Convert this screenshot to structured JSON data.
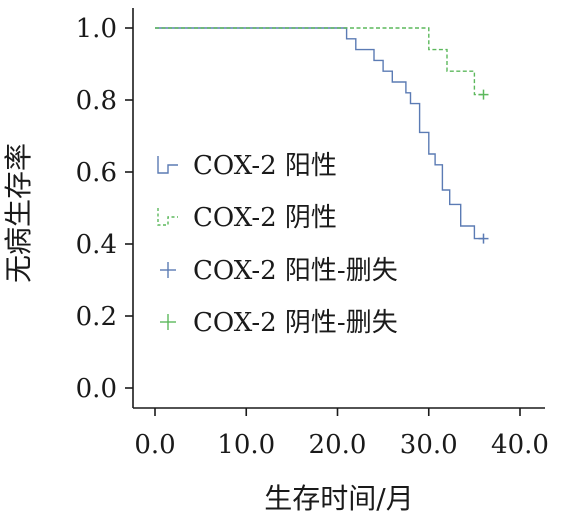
{
  "chart_data": {
    "type": "line",
    "xlabel": "生存时间/月",
    "ylabel": "无病生存率",
    "xlim": [
      0,
      40
    ],
    "ylim": [
      0,
      1
    ],
    "xticks": [
      "0.0",
      "10.0",
      "20.0",
      "30.0",
      "40.0"
    ],
    "yticks": [
      "0.0",
      "0.2",
      "0.4",
      "0.6",
      "0.8",
      "1.0"
    ],
    "grid": false,
    "legend_position": "center-left",
    "series": [
      {
        "name": "COX-2 阳性",
        "style": "solid-step",
        "color": "#5b7bb4",
        "points": [
          [
            0,
            1.0
          ],
          [
            21,
            1.0
          ],
          [
            21,
            0.97
          ],
          [
            22,
            0.97
          ],
          [
            22,
            0.94
          ],
          [
            24,
            0.94
          ],
          [
            24,
            0.91
          ],
          [
            25,
            0.91
          ],
          [
            25,
            0.88
          ],
          [
            26,
            0.88
          ],
          [
            26,
            0.85
          ],
          [
            27.5,
            0.85
          ],
          [
            27.5,
            0.82
          ],
          [
            28,
            0.82
          ],
          [
            28,
            0.79
          ],
          [
            29,
            0.79
          ],
          [
            29,
            0.71
          ],
          [
            30,
            0.71
          ],
          [
            30,
            0.65
          ],
          [
            30.7,
            0.65
          ],
          [
            30.7,
            0.62
          ],
          [
            31.5,
            0.62
          ],
          [
            31.5,
            0.55
          ],
          [
            32.3,
            0.55
          ],
          [
            32.3,
            0.51
          ],
          [
            33.5,
            0.51
          ],
          [
            33.5,
            0.45
          ],
          [
            35,
            0.45
          ],
          [
            35,
            0.415
          ],
          [
            36,
            0.415
          ]
        ]
      },
      {
        "name": "COX-2 阴性",
        "style": "dashed-step",
        "color": "#5cb85c",
        "points": [
          [
            0,
            1.0
          ],
          [
            30,
            1.0
          ],
          [
            30,
            0.94
          ],
          [
            32,
            0.94
          ],
          [
            32,
            0.88
          ],
          [
            35,
            0.88
          ],
          [
            35,
            0.815
          ],
          [
            36,
            0.815
          ]
        ]
      }
    ],
    "censored": [
      {
        "name": "COX-2 阳性-删失",
        "color": "#5b7bb4",
        "points": [
          [
            36,
            0.415
          ]
        ]
      },
      {
        "name": "COX-2 阴性-删失",
        "color": "#5cb85c",
        "points": [
          [
            36,
            0.815
          ]
        ]
      }
    ]
  }
}
